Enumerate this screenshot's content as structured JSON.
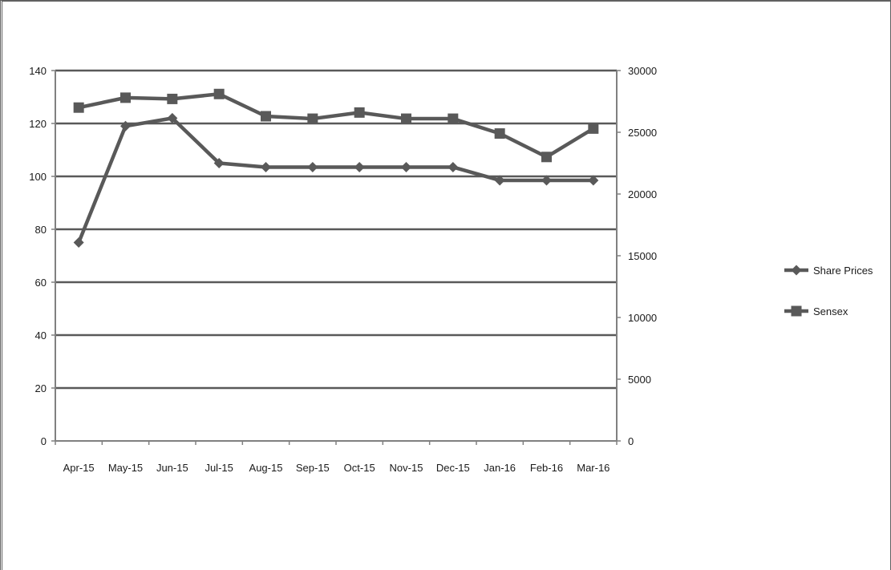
{
  "chart_data": {
    "type": "line",
    "title": "",
    "xlabel": "",
    "ylabel": "",
    "y2label": "",
    "categories": [
      "Apr-15",
      "May-15",
      "Jun-15",
      "Jul-15",
      "Aug-15",
      "Sep-15",
      "Oct-15",
      "Nov-15",
      "Dec-15",
      "Jan-16",
      "Feb-16",
      "Mar-16"
    ],
    "ylim": [
      0,
      140
    ],
    "yticks": [
      0,
      20,
      40,
      60,
      80,
      100,
      120,
      140
    ],
    "y2lim": [
      0,
      30000
    ],
    "y2ticks": [
      0,
      5000,
      10000,
      15000,
      20000,
      25000,
      30000
    ],
    "grid": "horizontal",
    "legend_position": "right",
    "series": [
      {
        "name": "Share Prices",
        "axis": "left",
        "marker": "diamond",
        "values": [
          75,
          119,
          122,
          105,
          103.5,
          103.5,
          103.5,
          103.5,
          103.5,
          98.5,
          98.5,
          98.5
        ]
      },
      {
        "name": "Sensex",
        "axis": "right",
        "marker": "square",
        "values": [
          27000,
          27800,
          27700,
          28100,
          26300,
          26100,
          26600,
          26100,
          26100,
          24900,
          23000,
          25300
        ]
      }
    ],
    "colors": {
      "line": "#595959",
      "grid": "#595959",
      "axis": "#808080"
    }
  }
}
